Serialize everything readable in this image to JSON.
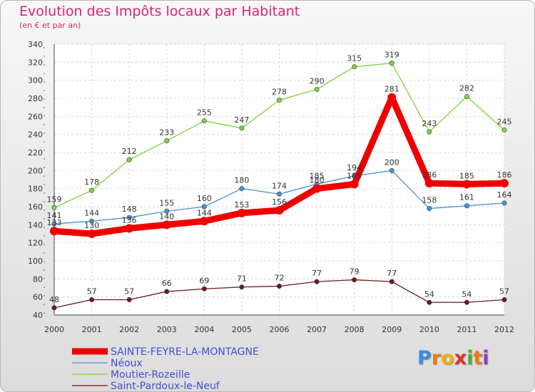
{
  "chart_data": {
    "type": "line",
    "title": "Evolution des Impôts locaux par Habitant",
    "subtitle": "(en € et par an)",
    "x": [
      "2000",
      "2001",
      "2002",
      "2003",
      "2004",
      "2005",
      "2006",
      "2007",
      "2008",
      "2009",
      "2010",
      "2011",
      "2012"
    ],
    "ylim": [
      40,
      340
    ],
    "yticks": [
      40,
      60,
      80,
      100,
      120,
      140,
      160,
      180,
      200,
      220,
      240,
      260,
      280,
      300,
      320,
      340
    ],
    "series": [
      {
        "name": "SAINTE-FEYRE-LA-MONTAGNE",
        "color": "#ee0000",
        "values": [
          133,
          130,
          136,
          140,
          144,
          153,
          156,
          180,
          185,
          281,
          186,
          185,
          186
        ],
        "labels": [
          "133",
          "130",
          "136",
          "140",
          "144",
          "153",
          "156",
          "180",
          "185",
          "281",
          "186",
          "185",
          "186"
        ]
      },
      {
        "name": "Néoux",
        "color": "#4a8fd0",
        "values": [
          141,
          144,
          148,
          155,
          160,
          180,
          174,
          185,
          194,
          200,
          158,
          161,
          164
        ],
        "labels": [
          "141",
          "144",
          "148",
          "155",
          "160",
          "180",
          "174",
          "185",
          "194",
          "200",
          "158",
          "161",
          "164"
        ]
      },
      {
        "name": "Moutier-Rozeille",
        "color": "#80d040",
        "values": [
          159,
          178,
          212,
          233,
          255,
          247,
          278,
          290,
          315,
          319,
          243,
          282,
          245
        ],
        "labels": [
          "159",
          "178",
          "212",
          "233",
          "255",
          "247",
          "278",
          "290",
          "315",
          "319",
          "243",
          "282",
          "245"
        ]
      },
      {
        "name": "Saint-Pardoux-le-Neuf",
        "color": "#6b1a1a",
        "values": [
          48,
          57,
          57,
          66,
          69,
          71,
          72,
          77,
          79,
          77,
          54,
          54,
          57
        ],
        "labels": [
          "48",
          "57",
          "57",
          "66",
          "69",
          "71",
          "72",
          "77",
          "79",
          "77",
          "54",
          "54",
          "57"
        ]
      }
    ]
  },
  "logo": {
    "letters": [
      "P",
      "r",
      "o",
      "x",
      "i",
      "t",
      "i"
    ],
    "colors": [
      "#3a8de0",
      "#f07a10",
      "#f0b010",
      "#e03030",
      "#50b030",
      "#f07a10",
      "#9040c0"
    ]
  }
}
